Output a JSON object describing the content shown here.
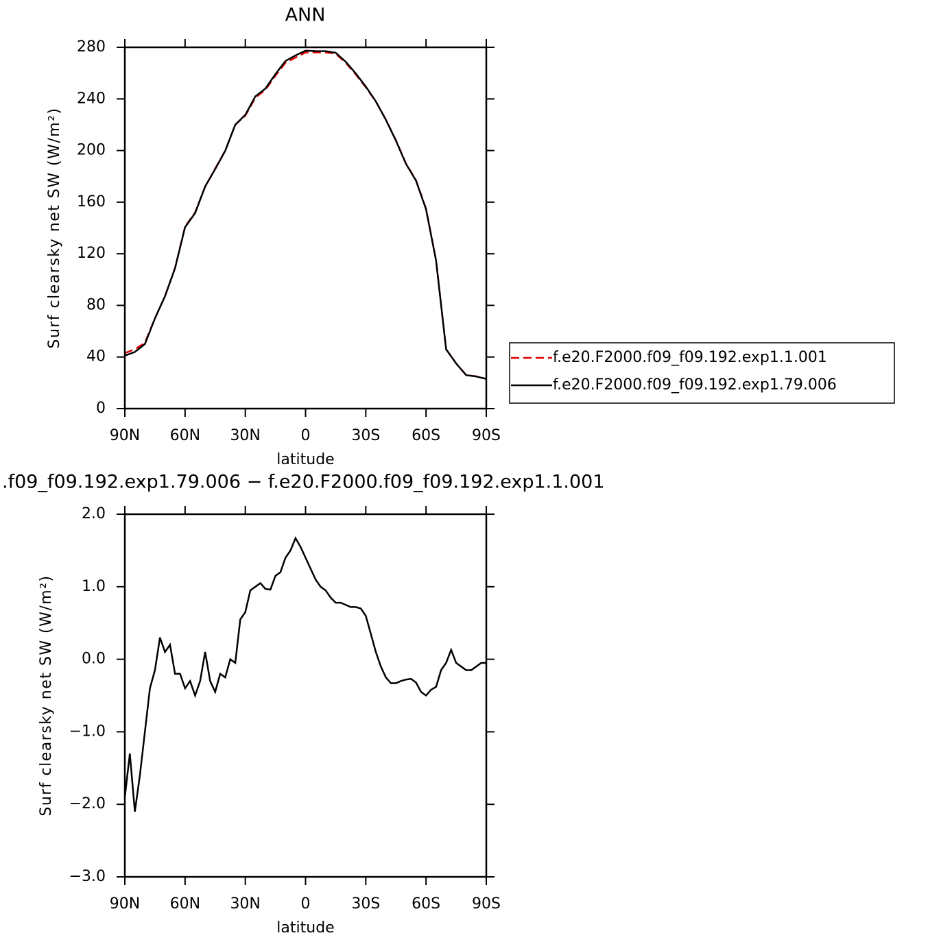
{
  "chart_data": [
    {
      "type": "line",
      "title": "ANN",
      "xlabel": "latitude",
      "ylabel": "Surf clearsky net SW (W/m²)",
      "x": [
        90,
        85,
        80,
        75,
        70,
        65,
        60,
        55,
        50,
        45,
        40,
        35,
        30,
        25,
        20,
        15,
        10,
        5,
        0,
        -5,
        -10,
        -15,
        -20,
        -25,
        -30,
        -35,
        -40,
        -45,
        -50,
        -55,
        -60,
        -65,
        -70,
        -75,
        -80,
        -85,
        -90
      ],
      "series": [
        {
          "name": "f.e20.F2000.f09_f09.192.exp1.1.001",
          "color": "#e00000",
          "dashed": true,
          "values": [
            43,
            46,
            51,
            70,
            87,
            109,
            141,
            152,
            172,
            186,
            200,
            220,
            227,
            241,
            247,
            258,
            268,
            272,
            276,
            276,
            276,
            275,
            268,
            259,
            249,
            238,
            224,
            208,
            190,
            177,
            155,
            115,
            46,
            35,
            26,
            25,
            23
          ]
        },
        {
          "name": "f.e20.F2000.f09_f09.192.exp1.79.006",
          "color": "#000000",
          "dashed": false,
          "values": [
            41.1,
            43.9,
            50,
            69.9,
            87.1,
            108.8,
            140.6,
            151.5,
            172.1,
            185.6,
            199.8,
            220,
            227.7,
            242,
            248,
            259.2,
            269.4,
            273.7,
            277.4,
            277.1,
            277,
            275.8,
            268.8,
            259.7,
            249.6,
            238.1,
            223.8,
            207.7,
            189.7,
            176.7,
            154.5,
            114.6,
            46,
            35,
            25.9,
            24.9,
            23
          ]
        }
      ],
      "xlim": [
        90,
        -90
      ],
      "xticks": [
        {
          "value": 90,
          "label": "90N"
        },
        {
          "value": 60,
          "label": "60N"
        },
        {
          "value": 30,
          "label": "30N"
        },
        0,
        {
          "value": -30,
          "label": "30S"
        },
        {
          "value": -60,
          "label": "60S"
        },
        {
          "value": -90,
          "label": "90S"
        }
      ],
      "ylim": [
        0,
        280
      ],
      "yticks": [
        0,
        40,
        80,
        120,
        160,
        200,
        240,
        280
      ]
    },
    {
      "type": "line",
      "title": ".f09_f09.192.exp1.79.006 − f.e20.F2000.f09_f09.192.exp1.1.001",
      "xlabel": "latitude",
      "ylabel": "Surf clearsky net SW (W/m²)",
      "x": [
        90,
        87.5,
        85,
        82.5,
        80,
        77.5,
        75,
        72.5,
        70,
        67.5,
        65,
        62.5,
        60,
        57.5,
        55,
        52.5,
        50,
        47.5,
        45,
        42.5,
        40,
        37.5,
        35,
        32.5,
        30,
        27.5,
        25,
        22.5,
        20,
        17.5,
        15,
        12.5,
        10,
        7.5,
        5,
        2.5,
        0,
        -2.5,
        -5,
        -7.5,
        -10,
        -12.5,
        -15,
        -17.5,
        -20,
        -22.5,
        -25,
        -27.5,
        -30,
        -32.5,
        -35,
        -37.5,
        -40,
        -42.5,
        -45,
        -47.5,
        -50,
        -52.5,
        -55,
        -57.5,
        -60,
        -62.5,
        -65,
        -67.5,
        -70,
        -72.5,
        -75,
        -77.5,
        -80,
        -82.5,
        -85,
        -87.5,
        -90
      ],
      "values": [
        -1.9,
        -1.3,
        -2.1,
        -1.6,
        -1.0,
        -0.4,
        -0.15,
        0.3,
        0.1,
        0.2,
        -0.2,
        -0.2,
        -0.4,
        -0.3,
        -0.5,
        -0.3,
        0.1,
        -0.3,
        -0.45,
        -0.2,
        -0.25,
        0.0,
        -0.05,
        0.55,
        0.65,
        0.95,
        1.0,
        1.05,
        0.97,
        0.96,
        1.15,
        1.2,
        1.4,
        1.5,
        1.67,
        1.55,
        1.4,
        1.25,
        1.1,
        1.0,
        0.95,
        0.85,
        0.78,
        0.78,
        0.75,
        0.72,
        0.72,
        0.7,
        0.6,
        0.35,
        0.1,
        -0.1,
        -0.25,
        -0.33,
        -0.33,
        -0.3,
        -0.28,
        -0.27,
        -0.32,
        -0.45,
        -0.5,
        -0.42,
        -0.38,
        -0.15,
        -0.05,
        0.13,
        -0.05,
        -0.1,
        -0.15,
        -0.15,
        -0.1,
        -0.05,
        -0.05
      ],
      "color": "#000000",
      "xlim": [
        90,
        -90
      ],
      "xticks": [
        {
          "value": 90,
          "label": "90N"
        },
        {
          "value": 60,
          "label": "60N"
        },
        {
          "value": 30,
          "label": "30N"
        },
        0,
        {
          "value": -30,
          "label": "30S"
        },
        {
          "value": -60,
          "label": "60S"
        },
        {
          "value": -90,
          "label": "90S"
        }
      ],
      "ylim": [
        -3,
        2
      ],
      "yticks": [
        {
          "value": 2,
          "label": "2.0"
        },
        {
          "value": 1,
          "label": "1.0"
        },
        {
          "value": 0,
          "label": "0.0"
        },
        {
          "value": -1,
          "label": "−1.0"
        },
        {
          "value": -2,
          "label": "−2.0"
        },
        {
          "value": -3,
          "label": "−3.0"
        }
      ]
    }
  ]
}
